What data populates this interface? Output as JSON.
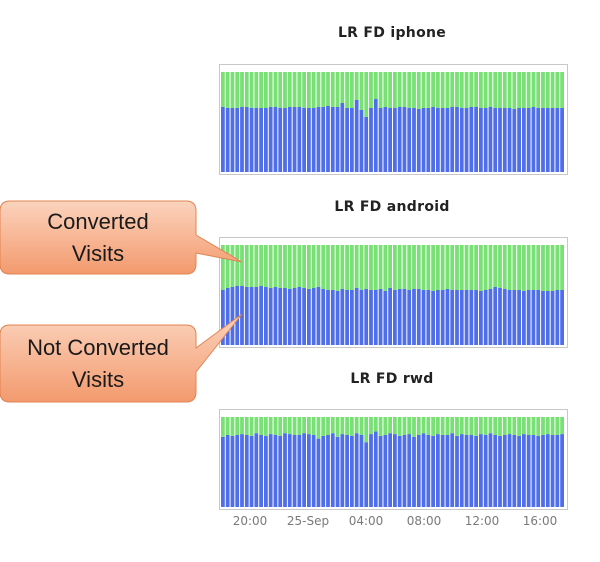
{
  "colors": {
    "converted": "#78e074",
    "not_converted": "#4f6ee8",
    "frame": "#c8c8c8",
    "callout_fill_top": "#fbd3bd",
    "callout_fill_bottom": "#f39a6e",
    "callout_stroke": "#e08452"
  },
  "callouts": [
    {
      "line1": "Converted",
      "line2": "Visits",
      "points_to_series": "Converted Visits"
    },
    {
      "line1": "Not Converted",
      "line2": "Visits",
      "points_to_series": "Not Converted Visits"
    }
  ],
  "chart_data": [
    {
      "type": "bar",
      "stacked": true,
      "title": "LR FD iphone",
      "ylim": [
        0,
        1
      ],
      "series": [
        {
          "name": "Not Converted Visits",
          "values": [
            0.65,
            0.64,
            0.64,
            0.64,
            0.65,
            0.65,
            0.64,
            0.64,
            0.64,
            0.64,
            0.65,
            0.65,
            0.64,
            0.64,
            0.65,
            0.65,
            0.65,
            0.64,
            0.64,
            0.64,
            0.65,
            0.65,
            0.66,
            0.65,
            0.65,
            0.69,
            0.64,
            0.64,
            0.72,
            0.62,
            0.55,
            0.64,
            0.73,
            0.64,
            0.65,
            0.64,
            0.64,
            0.65,
            0.65,
            0.64,
            0.64,
            0.63,
            0.64,
            0.64,
            0.65,
            0.64,
            0.64,
            0.64,
            0.65,
            0.65,
            0.64,
            0.64,
            0.65,
            0.65,
            0.64,
            0.64,
            0.65,
            0.64,
            0.64,
            0.64,
            0.64,
            0.63,
            0.64,
            0.64,
            0.64,
            0.65,
            0.64,
            0.64,
            0.64,
            0.64,
            0.64,
            0.64
          ]
        },
        {
          "name": "Converted Visits",
          "values": [
            0.35,
            0.36,
            0.36,
            0.36,
            0.35,
            0.35,
            0.36,
            0.36,
            0.36,
            0.36,
            0.35,
            0.35,
            0.36,
            0.36,
            0.35,
            0.35,
            0.35,
            0.36,
            0.36,
            0.36,
            0.35,
            0.35,
            0.34,
            0.35,
            0.35,
            0.31,
            0.36,
            0.36,
            0.28,
            0.38,
            0.45,
            0.36,
            0.27,
            0.36,
            0.35,
            0.36,
            0.36,
            0.35,
            0.35,
            0.36,
            0.36,
            0.37,
            0.36,
            0.36,
            0.35,
            0.36,
            0.36,
            0.36,
            0.35,
            0.35,
            0.36,
            0.36,
            0.35,
            0.35,
            0.36,
            0.36,
            0.35,
            0.36,
            0.36,
            0.36,
            0.36,
            0.37,
            0.36,
            0.36,
            0.36,
            0.35,
            0.36,
            0.36,
            0.36,
            0.36,
            0.36,
            0.36
          ]
        }
      ]
    },
    {
      "type": "bar",
      "stacked": true,
      "title": "LR FD android",
      "ylim": [
        0,
        1
      ],
      "series": [
        {
          "name": "Not Converted Visits",
          "values": [
            0.55,
            0.57,
            0.58,
            0.59,
            0.59,
            0.58,
            0.58,
            0.58,
            0.59,
            0.58,
            0.57,
            0.58,
            0.57,
            0.57,
            0.56,
            0.57,
            0.58,
            0.57,
            0.56,
            0.57,
            0.58,
            0.56,
            0.55,
            0.55,
            0.54,
            0.56,
            0.55,
            0.55,
            0.57,
            0.55,
            0.56,
            0.55,
            0.55,
            0.56,
            0.54,
            0.57,
            0.55,
            0.56,
            0.56,
            0.55,
            0.56,
            0.56,
            0.55,
            0.55,
            0.54,
            0.55,
            0.55,
            0.56,
            0.55,
            0.55,
            0.55,
            0.55,
            0.55,
            0.55,
            0.54,
            0.55,
            0.56,
            0.58,
            0.57,
            0.56,
            0.55,
            0.55,
            0.55,
            0.54,
            0.55,
            0.55,
            0.55,
            0.54,
            0.54,
            0.54,
            0.55,
            0.55
          ]
        },
        {
          "name": "Converted Visits",
          "values": [
            0.45,
            0.43,
            0.42,
            0.41,
            0.41,
            0.42,
            0.42,
            0.42,
            0.41,
            0.42,
            0.43,
            0.42,
            0.43,
            0.43,
            0.44,
            0.43,
            0.42,
            0.43,
            0.44,
            0.43,
            0.42,
            0.44,
            0.45,
            0.45,
            0.46,
            0.44,
            0.45,
            0.45,
            0.43,
            0.45,
            0.44,
            0.45,
            0.45,
            0.44,
            0.46,
            0.43,
            0.45,
            0.44,
            0.44,
            0.45,
            0.44,
            0.44,
            0.45,
            0.45,
            0.46,
            0.45,
            0.45,
            0.44,
            0.45,
            0.45,
            0.45,
            0.45,
            0.45,
            0.45,
            0.46,
            0.45,
            0.44,
            0.42,
            0.43,
            0.44,
            0.45,
            0.45,
            0.45,
            0.46,
            0.45,
            0.45,
            0.45,
            0.46,
            0.46,
            0.46,
            0.45,
            0.45
          ]
        }
      ]
    },
    {
      "type": "bar",
      "stacked": true,
      "title": "LR FD rwd",
      "ylim": [
        0,
        1
      ],
      "x_tick_labels": [
        "20:00",
        "25-Sep",
        "04:00",
        "08:00",
        "12:00",
        "16:00"
      ],
      "series": [
        {
          "name": "Not Converted Visits",
          "values": [
            0.78,
            0.8,
            0.79,
            0.8,
            0.81,
            0.8,
            0.79,
            0.82,
            0.8,
            0.79,
            0.81,
            0.8,
            0.79,
            0.82,
            0.81,
            0.8,
            0.8,
            0.82,
            0.81,
            0.8,
            0.76,
            0.79,
            0.8,
            0.82,
            0.78,
            0.81,
            0.8,
            0.79,
            0.82,
            0.8,
            0.72,
            0.81,
            0.84,
            0.79,
            0.8,
            0.82,
            0.81,
            0.79,
            0.8,
            0.81,
            0.78,
            0.8,
            0.82,
            0.8,
            0.79,
            0.81,
            0.8,
            0.8,
            0.82,
            0.79,
            0.81,
            0.8,
            0.8,
            0.79,
            0.81,
            0.8,
            0.82,
            0.8,
            0.79,
            0.8,
            0.81,
            0.8,
            0.79,
            0.81,
            0.8,
            0.8,
            0.79,
            0.8,
            0.81,
            0.8,
            0.8,
            0.81
          ]
        },
        {
          "name": "Converted Visits",
          "values": [
            0.22,
            0.2,
            0.21,
            0.2,
            0.19,
            0.2,
            0.21,
            0.18,
            0.2,
            0.21,
            0.19,
            0.2,
            0.21,
            0.18,
            0.19,
            0.2,
            0.2,
            0.18,
            0.19,
            0.2,
            0.24,
            0.21,
            0.2,
            0.18,
            0.22,
            0.19,
            0.2,
            0.21,
            0.18,
            0.2,
            0.28,
            0.19,
            0.16,
            0.21,
            0.2,
            0.18,
            0.19,
            0.21,
            0.2,
            0.19,
            0.22,
            0.2,
            0.18,
            0.2,
            0.21,
            0.19,
            0.2,
            0.2,
            0.18,
            0.21,
            0.19,
            0.2,
            0.2,
            0.21,
            0.19,
            0.2,
            0.18,
            0.2,
            0.21,
            0.2,
            0.19,
            0.2,
            0.21,
            0.19,
            0.2,
            0.2,
            0.21,
            0.2,
            0.19,
            0.2,
            0.2,
            0.19
          ]
        }
      ]
    }
  ]
}
